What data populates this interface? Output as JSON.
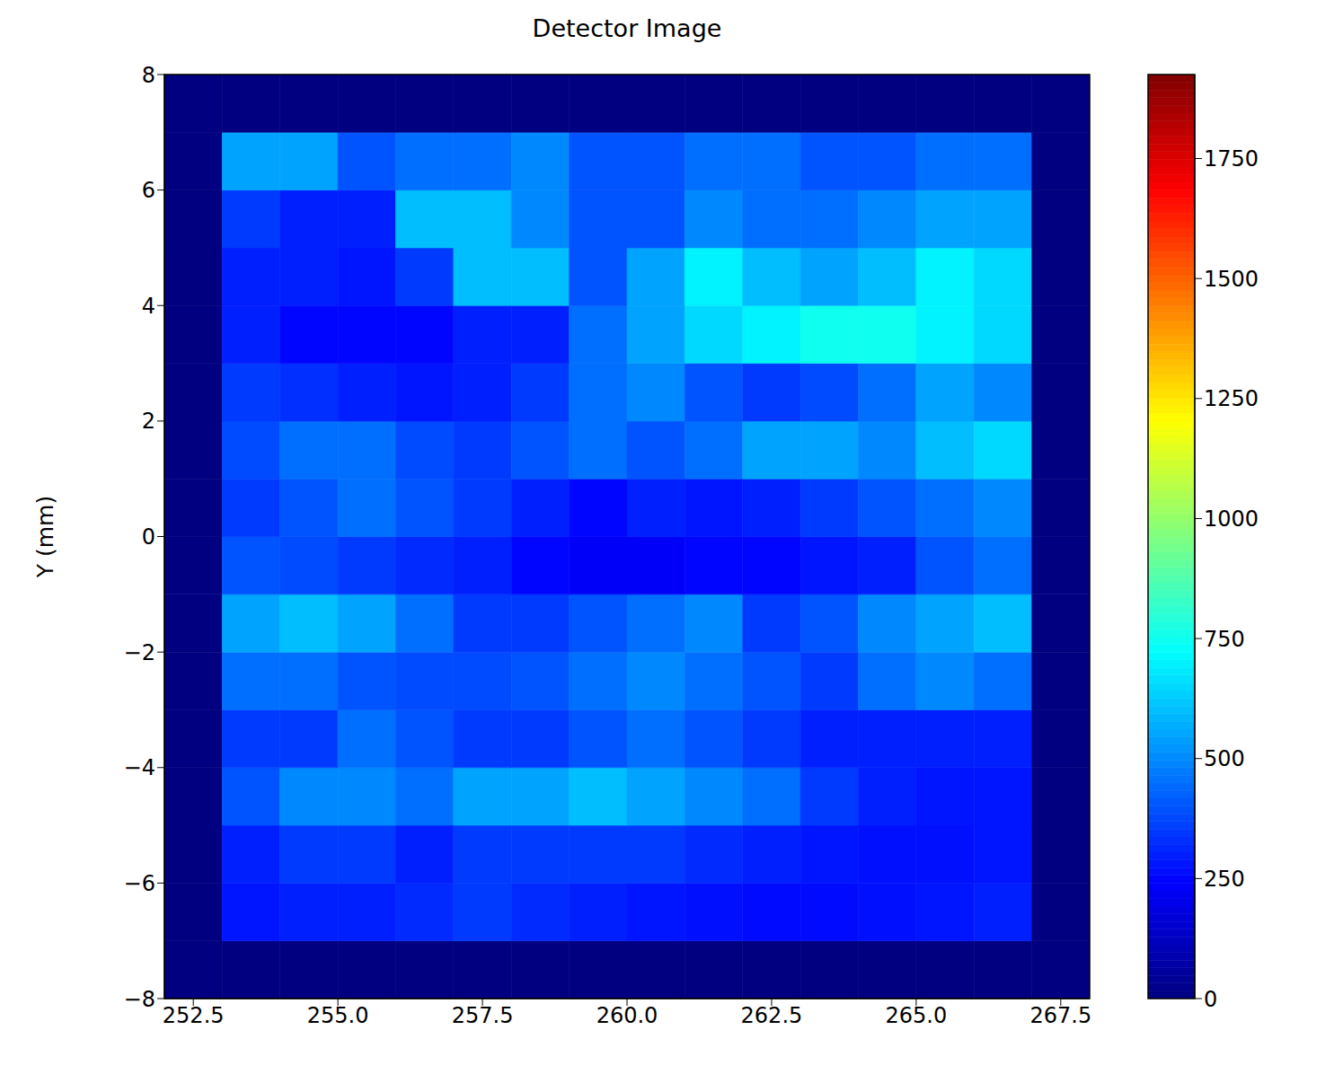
{
  "chart_data": {
    "type": "heatmap",
    "title": "Detector Image",
    "y_label": "Y (mm)",
    "color": "jet",
    "xlim": [
      252,
      268
    ],
    "ylim": [
      -8,
      8
    ],
    "xticks": [
      {
        "value": 252.5,
        "label": "252.5"
      },
      {
        "value": 255,
        "label": "255.0"
      },
      {
        "value": 257.5,
        "label": "257.5"
      },
      {
        "value": 260,
        "label": "260.0"
      },
      {
        "value": 262.5,
        "label": "262.5"
      },
      {
        "value": 265,
        "label": "265.0"
      },
      {
        "value": 267.5,
        "label": "267.5"
      }
    ],
    "yticks": [
      {
        "value": -8,
        "label": "−8"
      },
      {
        "value": -6,
        "label": "−6"
      },
      {
        "value": -4,
        "label": "−4"
      },
      {
        "value": -2,
        "label": "−2"
      },
      0,
      2,
      4,
      6,
      8
    ],
    "x_edges": [
      252,
      253,
      254,
      255,
      256,
      257,
      258,
      259,
      260,
      261,
      262,
      263,
      264,
      265,
      266,
      267,
      268
    ],
    "y_edges": [
      -8,
      -7,
      -6,
      -5,
      -4,
      -3,
      -2,
      -1,
      0,
      1,
      2,
      3,
      4,
      5,
      6,
      7,
      8
    ],
    "values": [
      [
        0,
        0,
        0,
        0,
        0,
        0,
        0,
        0,
        0,
        0,
        0,
        0,
        0,
        0,
        0,
        0
      ],
      [
        0,
        280,
        300,
        300,
        320,
        350,
        320,
        300,
        280,
        270,
        260,
        260,
        270,
        280,
        300,
        0
      ],
      [
        0,
        300,
        350,
        350,
        300,
        350,
        350,
        350,
        350,
        320,
        300,
        280,
        270,
        270,
        280,
        0
      ],
      [
        0,
        400,
        500,
        500,
        450,
        550,
        550,
        600,
        550,
        500,
        450,
        350,
        300,
        280,
        280,
        0
      ],
      [
        0,
        350,
        350,
        450,
        400,
        350,
        350,
        400,
        450,
        400,
        350,
        300,
        300,
        300,
        300,
        0
      ],
      [
        0,
        450,
        450,
        400,
        380,
        380,
        400,
        450,
        500,
        450,
        400,
        350,
        450,
        500,
        450,
        0
      ],
      [
        0,
        550,
        600,
        550,
        450,
        350,
        350,
        400,
        450,
        500,
        350,
        400,
        500,
        550,
        600,
        0
      ],
      [
        0,
        400,
        380,
        350,
        320,
        300,
        250,
        230,
        230,
        250,
        250,
        280,
        300,
        400,
        450,
        0
      ],
      [
        0,
        350,
        400,
        450,
        400,
        350,
        300,
        250,
        300,
        280,
        300,
        350,
        400,
        450,
        500,
        0
      ],
      [
        0,
        380,
        450,
        450,
        380,
        350,
        400,
        450,
        400,
        450,
        550,
        550,
        500,
        600,
        650,
        0
      ],
      [
        0,
        350,
        330,
        300,
        280,
        300,
        350,
        450,
        500,
        400,
        350,
        380,
        450,
        550,
        500,
        0
      ],
      [
        0,
        300,
        250,
        250,
        250,
        300,
        300,
        450,
        550,
        650,
        700,
        750,
        750,
        700,
        650,
        0
      ],
      [
        0,
        300,
        300,
        280,
        350,
        600,
        600,
        400,
        550,
        700,
        600,
        550,
        600,
        700,
        650,
        0
      ],
      [
        0,
        350,
        300,
        300,
        600,
        600,
        500,
        400,
        400,
        500,
        450,
        450,
        500,
        550,
        550,
        0
      ],
      [
        0,
        550,
        550,
        400,
        450,
        450,
        500,
        400,
        400,
        450,
        450,
        400,
        400,
        450,
        450,
        0
      ],
      [
        0,
        0,
        0,
        0,
        0,
        0,
        0,
        0,
        0,
        0,
        0,
        0,
        0,
        0,
        0,
        0
      ]
    ],
    "colorbar": {
      "range": [
        0,
        1925
      ],
      "ticks": [
        0,
        250,
        500,
        750,
        1000,
        1250,
        1500,
        1750
      ]
    }
  }
}
